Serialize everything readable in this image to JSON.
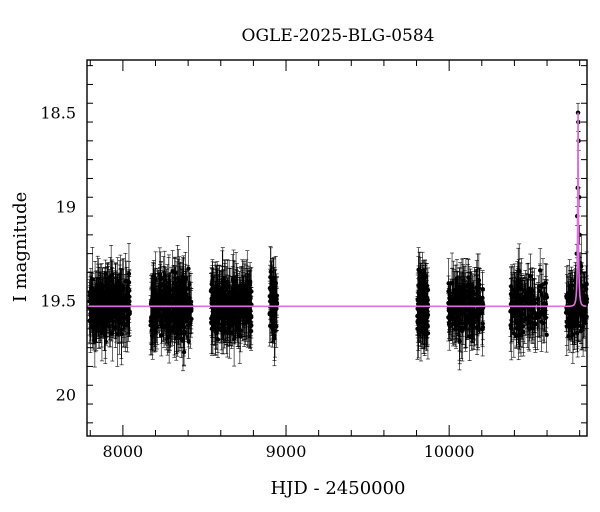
{
  "chart_data": {
    "type": "scatter",
    "title": "OGLE-2025-BLG-0584",
    "xlabel": "HJD - 2450000",
    "ylabel": "I magnitude",
    "xlim": [
      7780,
      10845
    ],
    "ylim": [
      20.22,
      18.22
    ],
    "y_inverted": true,
    "x_ticks": [
      8000,
      9000,
      10000
    ],
    "y_ticks": [
      "18.5",
      "19",
      "19.5",
      "20"
    ],
    "grid": false,
    "legend": "none",
    "colors": {
      "points": "#000000",
      "model": "#e070e0",
      "frame": "#000000"
    },
    "series": [
      {
        "kind": "observations",
        "baseline_mag": 19.53,
        "scatter_mag": 0.14,
        "typical_error_mag": 0.12,
        "seasons": [
          {
            "x_range": [
              7795,
              8045
            ],
            "n": 320
          },
          {
            "x_range": [
              8170,
              8420
            ],
            "n": 320
          },
          {
            "x_range": [
              8540,
              8790
            ],
            "n": 320
          },
          {
            "x_range": [
              8900,
              8945
            ],
            "n": 70
          },
          {
            "x_range": [
              9805,
              9870
            ],
            "n": 130
          },
          {
            "x_range": [
              9995,
              10210
            ],
            "n": 200
          },
          {
            "x_range": [
              10375,
              10600
            ],
            "n": 170
          },
          {
            "x_range": [
              10715,
              10845
            ],
            "n": 130
          }
        ],
        "event_points": [
          {
            "x": 10790,
            "y": 18.5
          },
          {
            "x": 10792,
            "y": 18.55
          },
          {
            "x": 10794,
            "y": 18.65
          },
          {
            "x": 10788,
            "y": 18.9
          },
          {
            "x": 10797,
            "y": 18.95
          },
          {
            "x": 10785,
            "y": 19.05
          },
          {
            "x": 10800,
            "y": 19.15
          },
          {
            "x": 10782,
            "y": 19.25
          },
          {
            "x": 10805,
            "y": 19.3
          },
          {
            "x": 10778,
            "y": 19.38
          },
          {
            "x": 10812,
            "y": 19.42
          }
        ]
      },
      {
        "kind": "model",
        "baseline_mag": 19.53,
        "peak_x": 10790,
        "peak_mag": 18.5,
        "u0": 0.1,
        "tE": 11
      }
    ]
  }
}
